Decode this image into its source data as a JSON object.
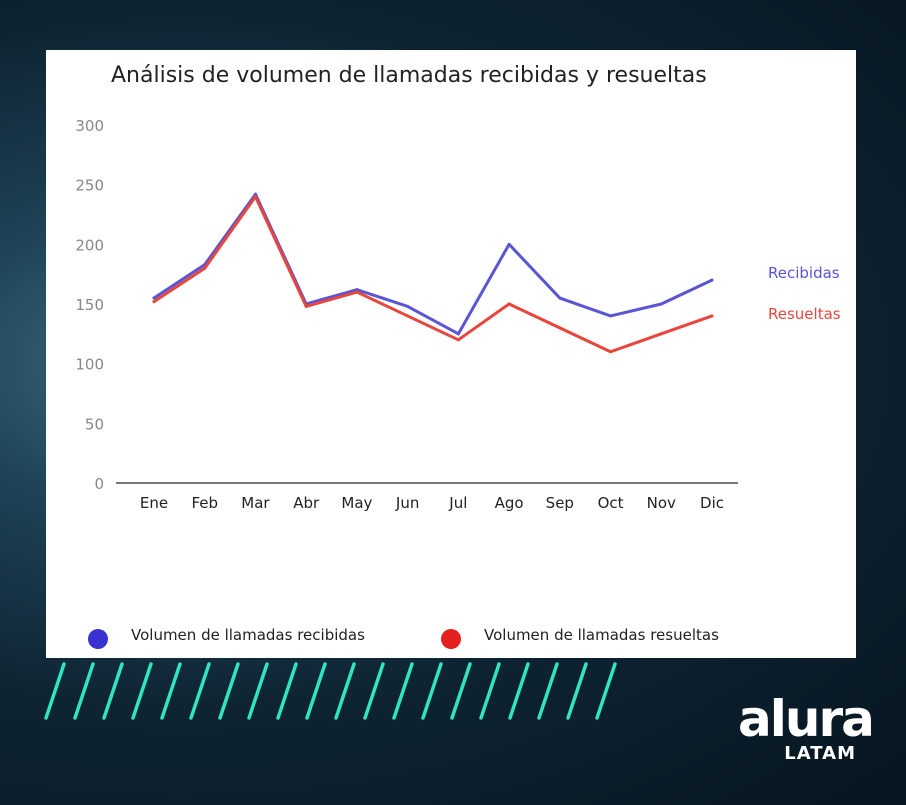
{
  "chart_data": {
    "type": "line",
    "title": "Análisis de volumen de llamadas recibidas y resueltas",
    "categories": [
      "Ene",
      "Feb",
      "Mar",
      "Abr",
      "May",
      "Jun",
      "Jul",
      "Ago",
      "Sep",
      "Oct",
      "Nov",
      "Dic"
    ],
    "ylim": [
      0,
      300
    ],
    "yticks": [
      0,
      50,
      100,
      150,
      200,
      250,
      300
    ],
    "grid": false,
    "series": [
      {
        "name": "Volumen de llamadas recibidas",
        "end_label": "Recibidas",
        "color": "#5a55d6",
        "legend_color": "#3a32d0",
        "values": [
          155,
          183,
          242,
          150,
          162,
          148,
          125,
          200,
          155,
          140,
          150,
          170
        ]
      },
      {
        "name": "Volumen de llamadas resueltas",
        "end_label": "Resueltas",
        "color": "#e8453c",
        "legend_color": "#e3201e",
        "values": [
          152,
          180,
          240,
          148,
          160,
          140,
          120,
          150,
          130,
          110,
          125,
          140
        ]
      }
    ],
    "legend_position": "bottom"
  },
  "branding": {
    "logo_main": "alura",
    "logo_sub": "LATAM",
    "stripe_color": "#2ee6c0"
  }
}
